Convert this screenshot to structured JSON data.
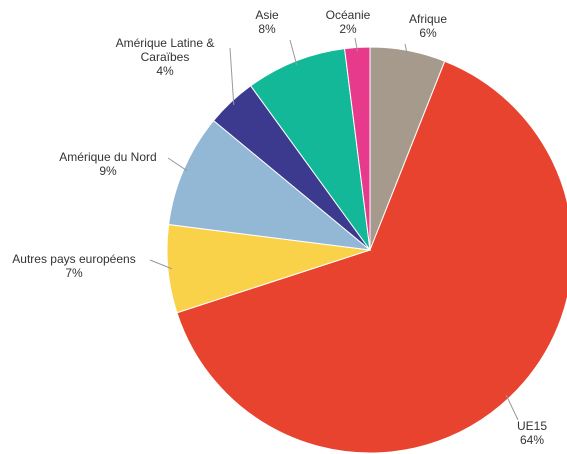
{
  "chart_data": {
    "type": "pie",
    "categories": [
      "Afrique",
      "UE15",
      "Autres pays européens",
      "Amérique du Nord",
      "Amérique Latine & Caraïbes",
      "Asie",
      "Océanie"
    ],
    "values": [
      6,
      64,
      7,
      9,
      4,
      8,
      2
    ],
    "value_labels": [
      "6%",
      "64%",
      "7%",
      "9%",
      "4%",
      "8%",
      "2%"
    ],
    "colors": [
      "#a69a8c",
      "#e8432f",
      "#f9d24a",
      "#92b8d6",
      "#3c3a8e",
      "#13b899",
      "#e83a8c"
    ]
  }
}
